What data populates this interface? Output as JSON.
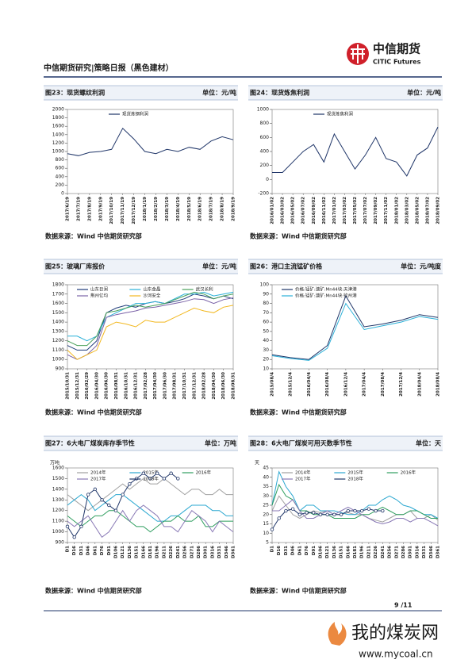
{
  "header": {
    "title": "中信期货研究|策略日报（黑色建材）",
    "logo_cn": "中信期货",
    "logo_en": "CITIC Futures"
  },
  "footer": {
    "page": "9 /11"
  },
  "watermark": {
    "cn": "我的煤炭网",
    "url": "www.mycoal.cn"
  },
  "chart_data": [
    {
      "type": "line",
      "title": "图23：现货螺纹利润",
      "unit": "单位：元/吨",
      "source": "数据来源：Wind  中信期货研究部",
      "categories": [
        "2017/6/19",
        "2017/7/19",
        "2017/8/19",
        "2017/9/19",
        "2017/10/19",
        "2017/11/19",
        "2017/12/19",
        "2018/1/19",
        "2018/2/19",
        "2018/3/19",
        "2018/4/19",
        "2018/5/19",
        "2018/6/19",
        "2018/7/19",
        "2018/8/19",
        "2018/9/19"
      ],
      "series": [
        {
          "name": "现货炼钢利润",
          "color": "#1f3568",
          "values": [
            950,
            900,
            980,
            1000,
            1050,
            1550,
            1300,
            1000,
            950,
            1050,
            1000,
            1100,
            1050,
            1250,
            1350,
            1280
          ]
        }
      ],
      "ylim": [
        0,
        2000
      ],
      "yticks": [
        0,
        200,
        400,
        600,
        800,
        1000,
        1200,
        1400,
        1600,
        1800,
        2000
      ]
    },
    {
      "type": "line",
      "title": "图24：现货炼焦利润",
      "unit": "单位：元/吨",
      "source": "数据来源：Wind  中信期货研究部",
      "categories": [
        "2016/01/02",
        "2016/03/02",
        "2016/05/02",
        "2016/07/02",
        "2016/09/02",
        "2016/11/02",
        "2017/01/02",
        "2017/03/02",
        "2017/05/02",
        "2017/07/02",
        "2017/09/02",
        "2017/11/02",
        "2018/01/02",
        "2018/03/02",
        "2018/05/02",
        "2018/07/02",
        "2018/09/02"
      ],
      "series": [
        {
          "name": "现货炼焦利润",
          "color": "#1f3568",
          "values": [
            100,
            100,
            250,
            400,
            500,
            250,
            650,
            400,
            150,
            350,
            600,
            300,
            250,
            50,
            350,
            450,
            750
          ]
        }
      ],
      "ylim": [
        -200,
        1000
      ],
      "yticks": [
        -200,
        0,
        200,
        400,
        600,
        800,
        1000
      ]
    },
    {
      "type": "line",
      "title": "图25：玻璃厂库报价",
      "unit": "单位：元/吨",
      "source": "数据来源：Wind  中信期货研究部",
      "categories": [
        "2015/10/31",
        "2015/12/31",
        "2016/02/29",
        "2016/04/30",
        "2016/06/30",
        "2016/08/31",
        "2016/10/31",
        "2016/12/31",
        "2017/02/28",
        "2017/04/30",
        "2017/06/30",
        "2017/08/31",
        "2017/10/31",
        "2017/12/31",
        "2018/02/28",
        "2018/04/30",
        "2018/06/30",
        "2018/08/31"
      ],
      "series": [
        {
          "name": "山东巨润",
          "color": "#1f3b7a",
          "values": [
            1150,
            1100,
            1100,
            1200,
            1500,
            1550,
            1580,
            1560,
            1600,
            1620,
            1600,
            1620,
            1650,
            1700,
            1680,
            1650,
            1680,
            1650
          ]
        },
        {
          "name": "山东金晶",
          "color": "#2ab0d8",
          "values": [
            1250,
            1250,
            1200,
            1250,
            1450,
            1500,
            1550,
            1600,
            1600,
            1620,
            1600,
            1650,
            1700,
            1700,
            1720,
            1680,
            1700,
            1720
          ]
        },
        {
          "name": "武汉长利",
          "color": "#4aa05a",
          "values": [
            1200,
            1150,
            1150,
            1250,
            1500,
            1520,
            1550,
            1580,
            1560,
            1580,
            1600,
            1640,
            1680,
            1720,
            1700,
            1650,
            1680,
            1700
          ]
        },
        {
          "name": "荆州亿均",
          "color": "#7b63a8",
          "values": [
            1050,
            1000,
            1050,
            1150,
            1450,
            1480,
            1500,
            1520,
            1550,
            1560,
            1580,
            1600,
            1620,
            1650,
            1640,
            1600,
            1640,
            1660
          ]
        },
        {
          "name": "沙河安全",
          "color": "#f2b820",
          "values": [
            1100,
            1000,
            1050,
            1100,
            1350,
            1400,
            1380,
            1350,
            1420,
            1400,
            1400,
            1450,
            1500,
            1550,
            1520,
            1500,
            1560,
            1580
          ]
        }
      ],
      "ylim": [
        900,
        1800
      ],
      "yticks": [
        900,
        1000,
        1100,
        1200,
        1300,
        1400,
        1500,
        1600,
        1700,
        1800
      ]
    },
    {
      "type": "line",
      "title": "图26：港口主流锰矿价格",
      "unit": "单位：元/吨度",
      "source": "数据来源：Wind  中信期货研究部",
      "categories": [
        "2015/08/4",
        "2015/12/4",
        "2016/04/4",
        "2016/08/4",
        "2016/12/4",
        "2017/04/4",
        "2017/08/4",
        "2017/12/4",
        "2018/04/4",
        "2018/08/4"
      ],
      "series": [
        {
          "name": "价格:锰矿:澳矿:Mn44块:天津港",
          "color": "#1f3568",
          "values": [
            25,
            22,
            20,
            35,
            88,
            55,
            58,
            62,
            68,
            65
          ]
        },
        {
          "name": "价格:锰矿:澳矿:Mn44块:钦州港",
          "color": "#2ab0d8",
          "values": [
            24,
            21,
            19,
            32,
            80,
            52,
            56,
            60,
            66,
            63
          ]
        }
      ],
      "ylim": [
        10,
        100
      ],
      "yticks": [
        10,
        20,
        30,
        40,
        50,
        60,
        70,
        80,
        90,
        100
      ]
    },
    {
      "type": "line",
      "title": "图27：6大电厂煤炭库存季节性",
      "unit": "单位：万吨",
      "source": "数据来源：Wind  中信期货研究部",
      "ylabel": "万吨",
      "categories": [
        "D1",
        "D16",
        "D31",
        "D46",
        "D61",
        "D76",
        "D91",
        "D106",
        "D121",
        "D136",
        "D151",
        "D166",
        "D181",
        "D196",
        "D211",
        "D226",
        "D241",
        "D256",
        "D271",
        "D286",
        "D301",
        "D316",
        "D331",
        "D346",
        "D361"
      ],
      "series": [
        {
          "name": "2014年",
          "color": "#a0a0a0",
          "values": [
            1350,
            1300,
            1250,
            1200,
            1250,
            1300,
            1350,
            1400,
            1450,
            1400,
            1450,
            1500,
            1450,
            1450,
            1500,
            1450,
            1400,
            1350,
            1400,
            1400,
            1350,
            1350,
            1400,
            1350,
            1350
          ]
        },
        {
          "name": "2015年",
          "color": "#2aa7d0",
          "values": [
            1250,
            1300,
            1350,
            1300,
            1200,
            1250,
            1300,
            1350,
            1350,
            1300,
            1250,
            1200,
            1150,
            1100,
            1100,
            1150,
            1150,
            1200,
            1250,
            1250,
            1250,
            1200,
            1200,
            1150,
            1150
          ]
        },
        {
          "name": "2016年",
          "color": "#2f9e5f",
          "values": [
            1150,
            1100,
            1050,
            1100,
            1150,
            1150,
            1200,
            1200,
            1150,
            1100,
            1050,
            1050,
            1000,
            1050,
            1100,
            1100,
            1150,
            1100,
            1100,
            1150,
            1050,
            1050,
            1100,
            1100,
            1100
          ]
        },
        {
          "name": "2017年",
          "color": "#8878b5",
          "values": [
            1100,
            1050,
            1100,
            1150,
            1050,
            950,
            1000,
            1100,
            1200,
            1100,
            1200,
            1250,
            1200,
            1150,
            1050,
            1050,
            1000,
            1100,
            1200,
            1150,
            1100,
            1000,
            1100,
            1050,
            1000
          ]
        },
        {
          "name": "2018年",
          "color": "#1f3568",
          "marker": "circle",
          "values": [
            1050,
            950,
            1050,
            1350,
            1400,
            1300,
            1250,
            1200,
            1350,
            1450,
            1500,
            1550,
            1500,
            1550,
            1500,
            1550,
            1500,
            null,
            null,
            null,
            null,
            null,
            null,
            null,
            null
          ]
        }
      ],
      "ylim": [
        900,
        1600
      ],
      "yticks": [
        900,
        1000,
        1100,
        1200,
        1300,
        1400,
        1500,
        1600
      ]
    },
    {
      "type": "line",
      "title": "图28：6大电厂煤炭可用天数季节性",
      "unit": "单位：天",
      "source": "数据来源：Wind  中信期货研究部",
      "ylabel": "天",
      "categories": [
        "D1",
        "D16",
        "D31",
        "D46",
        "D61",
        "D76",
        "D91",
        "D106",
        "D121",
        "D136",
        "D151",
        "D166",
        "D181",
        "D196",
        "D211",
        "D226",
        "D241",
        "D256",
        "D271",
        "D286",
        "D301",
        "D316",
        "D331",
        "D346",
        "D361"
      ],
      "series": [
        {
          "name": "2014年",
          "color": "#a0a0a0",
          "values": [
            22,
            30,
            25,
            20,
            18,
            20,
            22,
            21,
            22,
            20,
            20,
            21,
            20,
            20,
            18,
            17,
            16,
            18,
            20,
            20,
            22,
            18,
            18,
            20,
            17
          ]
        },
        {
          "name": "2015年",
          "color": "#2aa7d0",
          "values": [
            25,
            43,
            35,
            30,
            22,
            25,
            25,
            22,
            22,
            22,
            21,
            20,
            20,
            22,
            25,
            25,
            28,
            30,
            28,
            25,
            24,
            22,
            20,
            20,
            18
          ]
        },
        {
          "name": "2016年",
          "color": "#2f9e5f",
          "values": [
            25,
            36,
            30,
            28,
            22,
            22,
            20,
            20,
            20,
            18,
            18,
            18,
            18,
            20,
            20,
            22,
            24,
            22,
            20,
            20,
            22,
            22,
            20,
            18,
            18
          ]
        },
        {
          "name": "2017年",
          "color": "#8878b5",
          "values": [
            22,
            22,
            25,
            28,
            22,
            18,
            18,
            20,
            22,
            20,
            22,
            24,
            22,
            20,
            18,
            16,
            15,
            16,
            18,
            18,
            16,
            18,
            18,
            16,
            14
          ]
        },
        {
          "name": "2018年",
          "color": "#1f3568",
          "marker": "circle",
          "values": [
            12,
            18,
            22,
            23,
            20,
            21,
            21,
            20,
            20,
            20,
            20,
            22,
            22,
            22,
            23,
            22,
            22,
            null,
            null,
            null,
            null,
            null,
            null,
            null,
            null
          ]
        }
      ],
      "ylim": [
        5,
        45
      ],
      "yticks": [
        5,
        10,
        15,
        20,
        25,
        30,
        35,
        40,
        45
      ]
    }
  ]
}
